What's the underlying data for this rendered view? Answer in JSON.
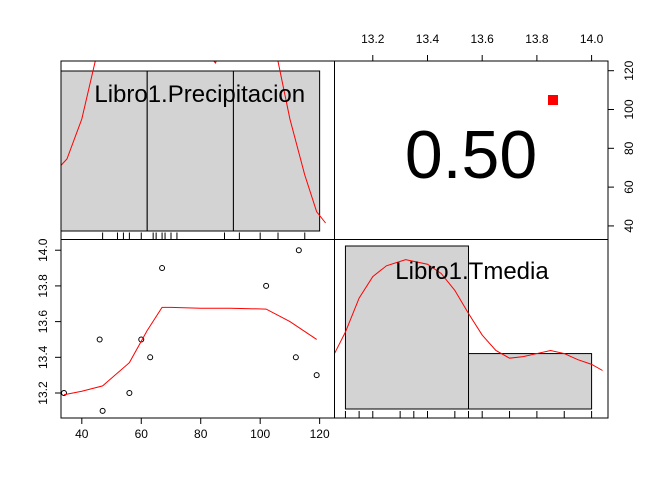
{
  "chart_data": {
    "type": "scatter-matrix",
    "variables": [
      "Libro1.Precipitacion",
      "Libro1.Tmedia"
    ],
    "correlation": {
      "text": "0.50",
      "value": 0.5,
      "marker_color": "#ff0000"
    },
    "precipitacion": {
      "label": "Libro1.Precipitacion",
      "range": [
        33,
        125
      ],
      "ticks": [
        40,
        60,
        80,
        100,
        120
      ],
      "histogram_breaks": [
        33,
        62,
        91,
        120
      ],
      "histogram_heights": [
        1,
        1,
        1
      ],
      "density": [
        [
          25,
          0.3
        ],
        [
          30,
          0.35
        ],
        [
          35,
          0.45
        ],
        [
          40,
          0.7
        ],
        [
          45,
          1.1
        ],
        [
          49,
          1.5
        ],
        [
          52,
          2.0
        ]
      ],
      "density_right": [
        [
          70,
          2.0
        ],
        [
          73,
          1.65
        ],
        [
          77,
          1.3
        ],
        [
          80,
          1.15
        ],
        [
          85,
          1.05
        ],
        [
          88,
          1.25
        ],
        [
          92,
          1.6
        ],
        [
          97,
          1.85
        ],
        [
          100,
          1.6
        ],
        [
          105,
          1.15
        ],
        [
          110,
          0.7
        ],
        [
          115,
          0.35
        ],
        [
          119,
          0.12
        ],
        [
          122,
          0.05
        ]
      ],
      "rug": [
        33,
        47,
        52,
        54,
        56,
        60,
        64,
        65,
        67,
        68,
        70,
        72,
        88,
        93,
        100,
        106,
        115
      ]
    },
    "tmedia": {
      "label": "Libro1.Tmedia",
      "range": [
        13.06,
        14.06
      ],
      "ticks": [
        13.2,
        13.4,
        13.6,
        13.8,
        14.0
      ],
      "tick_labels": [
        "13.2",
        "13.4",
        "13.6",
        "13.8",
        "14.0"
      ],
      "histogram_breaks": [
        13.1,
        13.55,
        14.0
      ],
      "histogram_heights": [
        1.0,
        0.34
      ],
      "density": [
        [
          13.06,
          0.36
        ],
        [
          13.1,
          0.5
        ],
        [
          13.15,
          0.72
        ],
        [
          13.2,
          0.86
        ],
        [
          13.25,
          0.93
        ],
        [
          13.32,
          0.97
        ],
        [
          13.4,
          0.94
        ],
        [
          13.45,
          0.88
        ],
        [
          13.5,
          0.77
        ],
        [
          13.55,
          0.62
        ],
        [
          13.6,
          0.48
        ],
        [
          13.65,
          0.38
        ],
        [
          13.7,
          0.33
        ],
        [
          13.75,
          0.34
        ],
        [
          13.8,
          0.36
        ],
        [
          13.85,
          0.38
        ],
        [
          13.9,
          0.36
        ],
        [
          13.95,
          0.32
        ],
        [
          14.0,
          0.29
        ],
        [
          14.04,
          0.25
        ]
      ],
      "rug": [
        13.1,
        13.15,
        13.2,
        13.3,
        13.35,
        13.4,
        13.5,
        13.55,
        13.6,
        13.7,
        13.8,
        13.9,
        14.0
      ]
    },
    "scatter": {
      "x": [
        34,
        46,
        47,
        56,
        60,
        63,
        67,
        102,
        112,
        113,
        119
      ],
      "y": [
        13.2,
        13.5,
        13.1,
        13.2,
        13.5,
        13.4,
        13.9,
        13.8,
        13.4,
        14.0,
        13.3
      ]
    },
    "smooth_line": {
      "x": [
        34,
        40,
        47,
        56,
        62,
        67,
        70,
        80,
        90,
        102,
        110,
        119
      ],
      "y": [
        13.19,
        13.21,
        13.24,
        13.37,
        13.55,
        13.68,
        13.68,
        13.675,
        13.675,
        13.67,
        13.6,
        13.5
      ]
    },
    "line_color": "#ff0000",
    "bar_fill": "#d3d3d3"
  }
}
